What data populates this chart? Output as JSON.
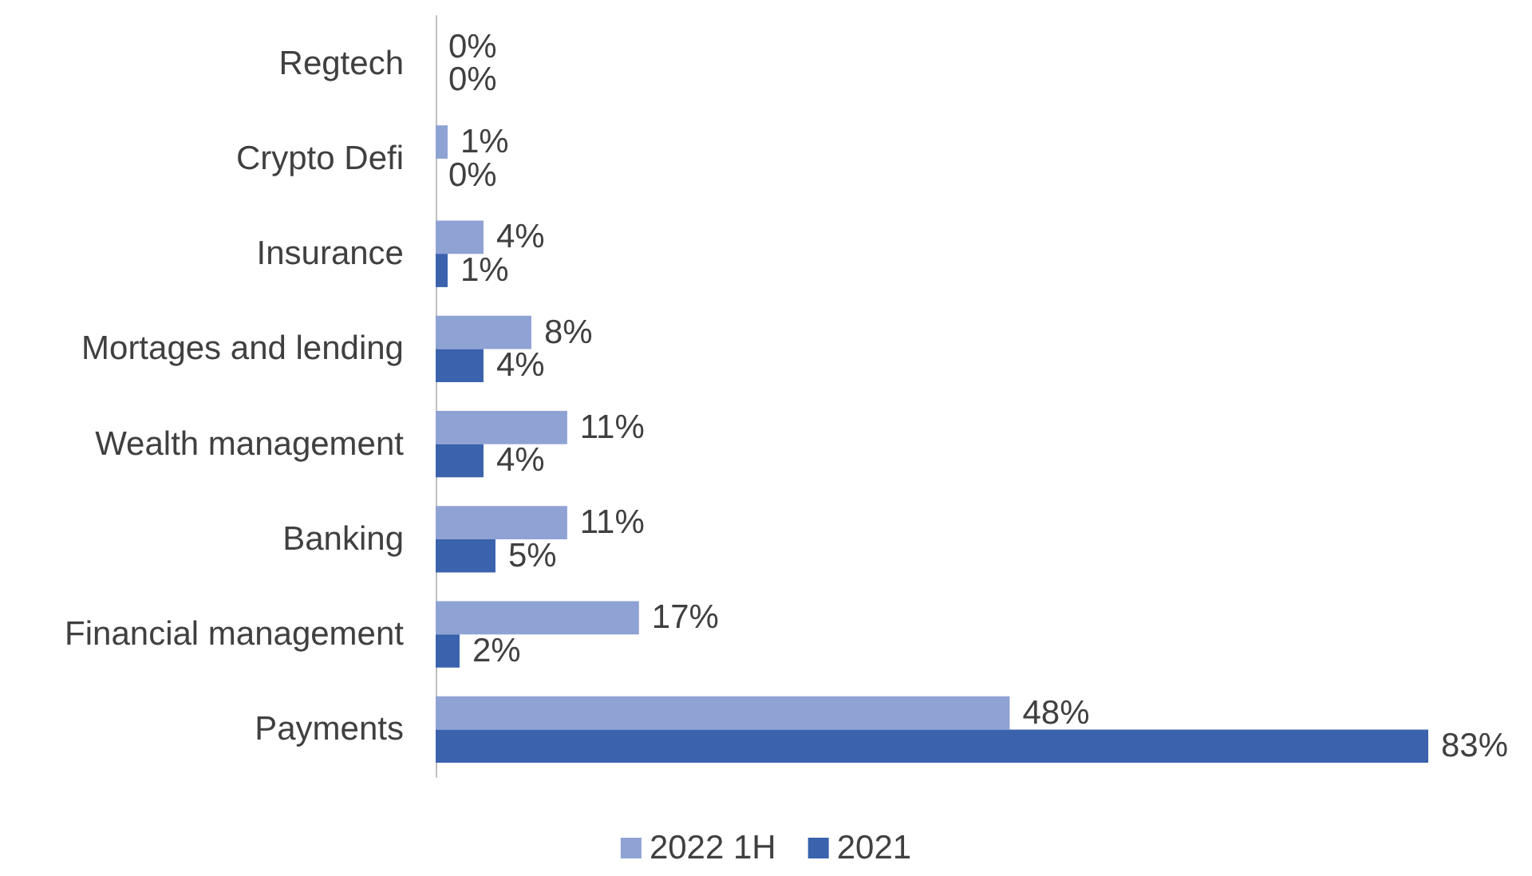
{
  "chart_data": {
    "type": "bar",
    "orientation": "horizontal",
    "categories": [
      "Regtech",
      "Crypto Defi",
      "Insurance",
      "Mortages and lending",
      "Wealth management",
      "Banking",
      "Financial management",
      "Payments"
    ],
    "series": [
      {
        "name": "2022 1H",
        "color": "#8fa2d4",
        "values": [
          0,
          1,
          4,
          8,
          11,
          11,
          17,
          48
        ],
        "value_labels": [
          "0%",
          "1%",
          "4%",
          "8%",
          "11%",
          "11%",
          "17%",
          "48%"
        ]
      },
      {
        "name": "2021",
        "color": "#3a62ad",
        "values": [
          0,
          0,
          1,
          4,
          4,
          5,
          2,
          83
        ],
        "value_labels": [
          "0%",
          "0%",
          "1%",
          "4%",
          "4%",
          "5%",
          "2%",
          "83%"
        ]
      }
    ],
    "legend": "bottom",
    "grid": false
  }
}
